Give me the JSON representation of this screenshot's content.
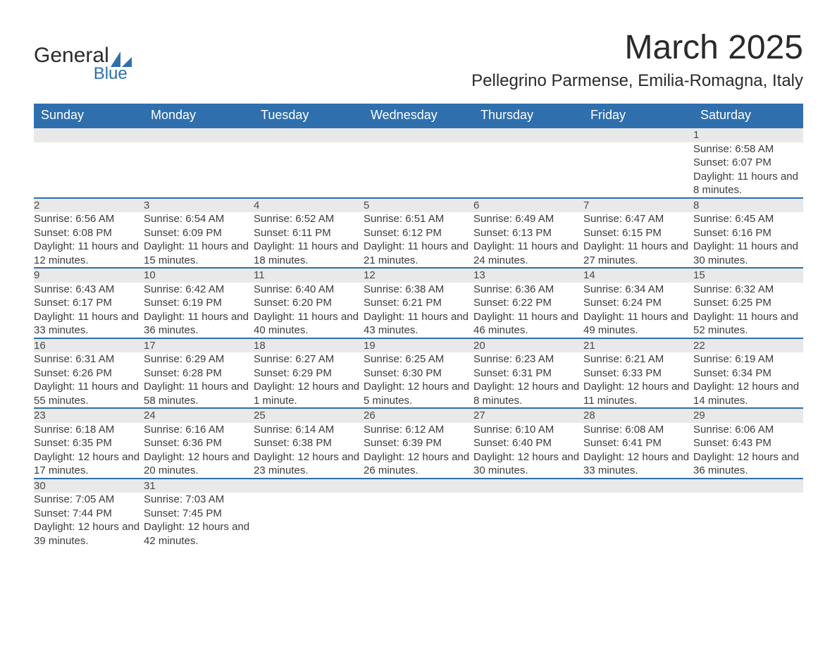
{
  "logo": {
    "word1": "General",
    "word2": "Blue"
  },
  "title": "March 2025",
  "location": "Pellegrino Parmense, Emilia-Romagna, Italy",
  "colors": {
    "header_bg": "#2f6fad",
    "header_text": "#ffffff",
    "daynum_bg": "#e9e9e9",
    "border": "#2f6fad",
    "body_text": "#3c3c3c",
    "page_bg": "#ffffff"
  },
  "day_names": [
    "Sunday",
    "Monday",
    "Tuesday",
    "Wednesday",
    "Thursday",
    "Friday",
    "Saturday"
  ],
  "weeks": [
    [
      null,
      null,
      null,
      null,
      null,
      null,
      {
        "n": "1",
        "sunrise": "Sunrise: 6:58 AM",
        "sunset": "Sunset: 6:07 PM",
        "daylight": "Daylight: 11 hours and 8 minutes."
      }
    ],
    [
      {
        "n": "2",
        "sunrise": "Sunrise: 6:56 AM",
        "sunset": "Sunset: 6:08 PM",
        "daylight": "Daylight: 11 hours and 12 minutes."
      },
      {
        "n": "3",
        "sunrise": "Sunrise: 6:54 AM",
        "sunset": "Sunset: 6:09 PM",
        "daylight": "Daylight: 11 hours and 15 minutes."
      },
      {
        "n": "4",
        "sunrise": "Sunrise: 6:52 AM",
        "sunset": "Sunset: 6:11 PM",
        "daylight": "Daylight: 11 hours and 18 minutes."
      },
      {
        "n": "5",
        "sunrise": "Sunrise: 6:51 AM",
        "sunset": "Sunset: 6:12 PM",
        "daylight": "Daylight: 11 hours and 21 minutes."
      },
      {
        "n": "6",
        "sunrise": "Sunrise: 6:49 AM",
        "sunset": "Sunset: 6:13 PM",
        "daylight": "Daylight: 11 hours and 24 minutes."
      },
      {
        "n": "7",
        "sunrise": "Sunrise: 6:47 AM",
        "sunset": "Sunset: 6:15 PM",
        "daylight": "Daylight: 11 hours and 27 minutes."
      },
      {
        "n": "8",
        "sunrise": "Sunrise: 6:45 AM",
        "sunset": "Sunset: 6:16 PM",
        "daylight": "Daylight: 11 hours and 30 minutes."
      }
    ],
    [
      {
        "n": "9",
        "sunrise": "Sunrise: 6:43 AM",
        "sunset": "Sunset: 6:17 PM",
        "daylight": "Daylight: 11 hours and 33 minutes."
      },
      {
        "n": "10",
        "sunrise": "Sunrise: 6:42 AM",
        "sunset": "Sunset: 6:19 PM",
        "daylight": "Daylight: 11 hours and 36 minutes."
      },
      {
        "n": "11",
        "sunrise": "Sunrise: 6:40 AM",
        "sunset": "Sunset: 6:20 PM",
        "daylight": "Daylight: 11 hours and 40 minutes."
      },
      {
        "n": "12",
        "sunrise": "Sunrise: 6:38 AM",
        "sunset": "Sunset: 6:21 PM",
        "daylight": "Daylight: 11 hours and 43 minutes."
      },
      {
        "n": "13",
        "sunrise": "Sunrise: 6:36 AM",
        "sunset": "Sunset: 6:22 PM",
        "daylight": "Daylight: 11 hours and 46 minutes."
      },
      {
        "n": "14",
        "sunrise": "Sunrise: 6:34 AM",
        "sunset": "Sunset: 6:24 PM",
        "daylight": "Daylight: 11 hours and 49 minutes."
      },
      {
        "n": "15",
        "sunrise": "Sunrise: 6:32 AM",
        "sunset": "Sunset: 6:25 PM",
        "daylight": "Daylight: 11 hours and 52 minutes."
      }
    ],
    [
      {
        "n": "16",
        "sunrise": "Sunrise: 6:31 AM",
        "sunset": "Sunset: 6:26 PM",
        "daylight": "Daylight: 11 hours and 55 minutes."
      },
      {
        "n": "17",
        "sunrise": "Sunrise: 6:29 AM",
        "sunset": "Sunset: 6:28 PM",
        "daylight": "Daylight: 11 hours and 58 minutes."
      },
      {
        "n": "18",
        "sunrise": "Sunrise: 6:27 AM",
        "sunset": "Sunset: 6:29 PM",
        "daylight": "Daylight: 12 hours and 1 minute."
      },
      {
        "n": "19",
        "sunrise": "Sunrise: 6:25 AM",
        "sunset": "Sunset: 6:30 PM",
        "daylight": "Daylight: 12 hours and 5 minutes."
      },
      {
        "n": "20",
        "sunrise": "Sunrise: 6:23 AM",
        "sunset": "Sunset: 6:31 PM",
        "daylight": "Daylight: 12 hours and 8 minutes."
      },
      {
        "n": "21",
        "sunrise": "Sunrise: 6:21 AM",
        "sunset": "Sunset: 6:33 PM",
        "daylight": "Daylight: 12 hours and 11 minutes."
      },
      {
        "n": "22",
        "sunrise": "Sunrise: 6:19 AM",
        "sunset": "Sunset: 6:34 PM",
        "daylight": "Daylight: 12 hours and 14 minutes."
      }
    ],
    [
      {
        "n": "23",
        "sunrise": "Sunrise: 6:18 AM",
        "sunset": "Sunset: 6:35 PM",
        "daylight": "Daylight: 12 hours and 17 minutes."
      },
      {
        "n": "24",
        "sunrise": "Sunrise: 6:16 AM",
        "sunset": "Sunset: 6:36 PM",
        "daylight": "Daylight: 12 hours and 20 minutes."
      },
      {
        "n": "25",
        "sunrise": "Sunrise: 6:14 AM",
        "sunset": "Sunset: 6:38 PM",
        "daylight": "Daylight: 12 hours and 23 minutes."
      },
      {
        "n": "26",
        "sunrise": "Sunrise: 6:12 AM",
        "sunset": "Sunset: 6:39 PM",
        "daylight": "Daylight: 12 hours and 26 minutes."
      },
      {
        "n": "27",
        "sunrise": "Sunrise: 6:10 AM",
        "sunset": "Sunset: 6:40 PM",
        "daylight": "Daylight: 12 hours and 30 minutes."
      },
      {
        "n": "28",
        "sunrise": "Sunrise: 6:08 AM",
        "sunset": "Sunset: 6:41 PM",
        "daylight": "Daylight: 12 hours and 33 minutes."
      },
      {
        "n": "29",
        "sunrise": "Sunrise: 6:06 AM",
        "sunset": "Sunset: 6:43 PM",
        "daylight": "Daylight: 12 hours and 36 minutes."
      }
    ],
    [
      {
        "n": "30",
        "sunrise": "Sunrise: 7:05 AM",
        "sunset": "Sunset: 7:44 PM",
        "daylight": "Daylight: 12 hours and 39 minutes."
      },
      {
        "n": "31",
        "sunrise": "Sunrise: 7:03 AM",
        "sunset": "Sunset: 7:45 PM",
        "daylight": "Daylight: 12 hours and 42 minutes."
      },
      null,
      null,
      null,
      null,
      null
    ]
  ]
}
